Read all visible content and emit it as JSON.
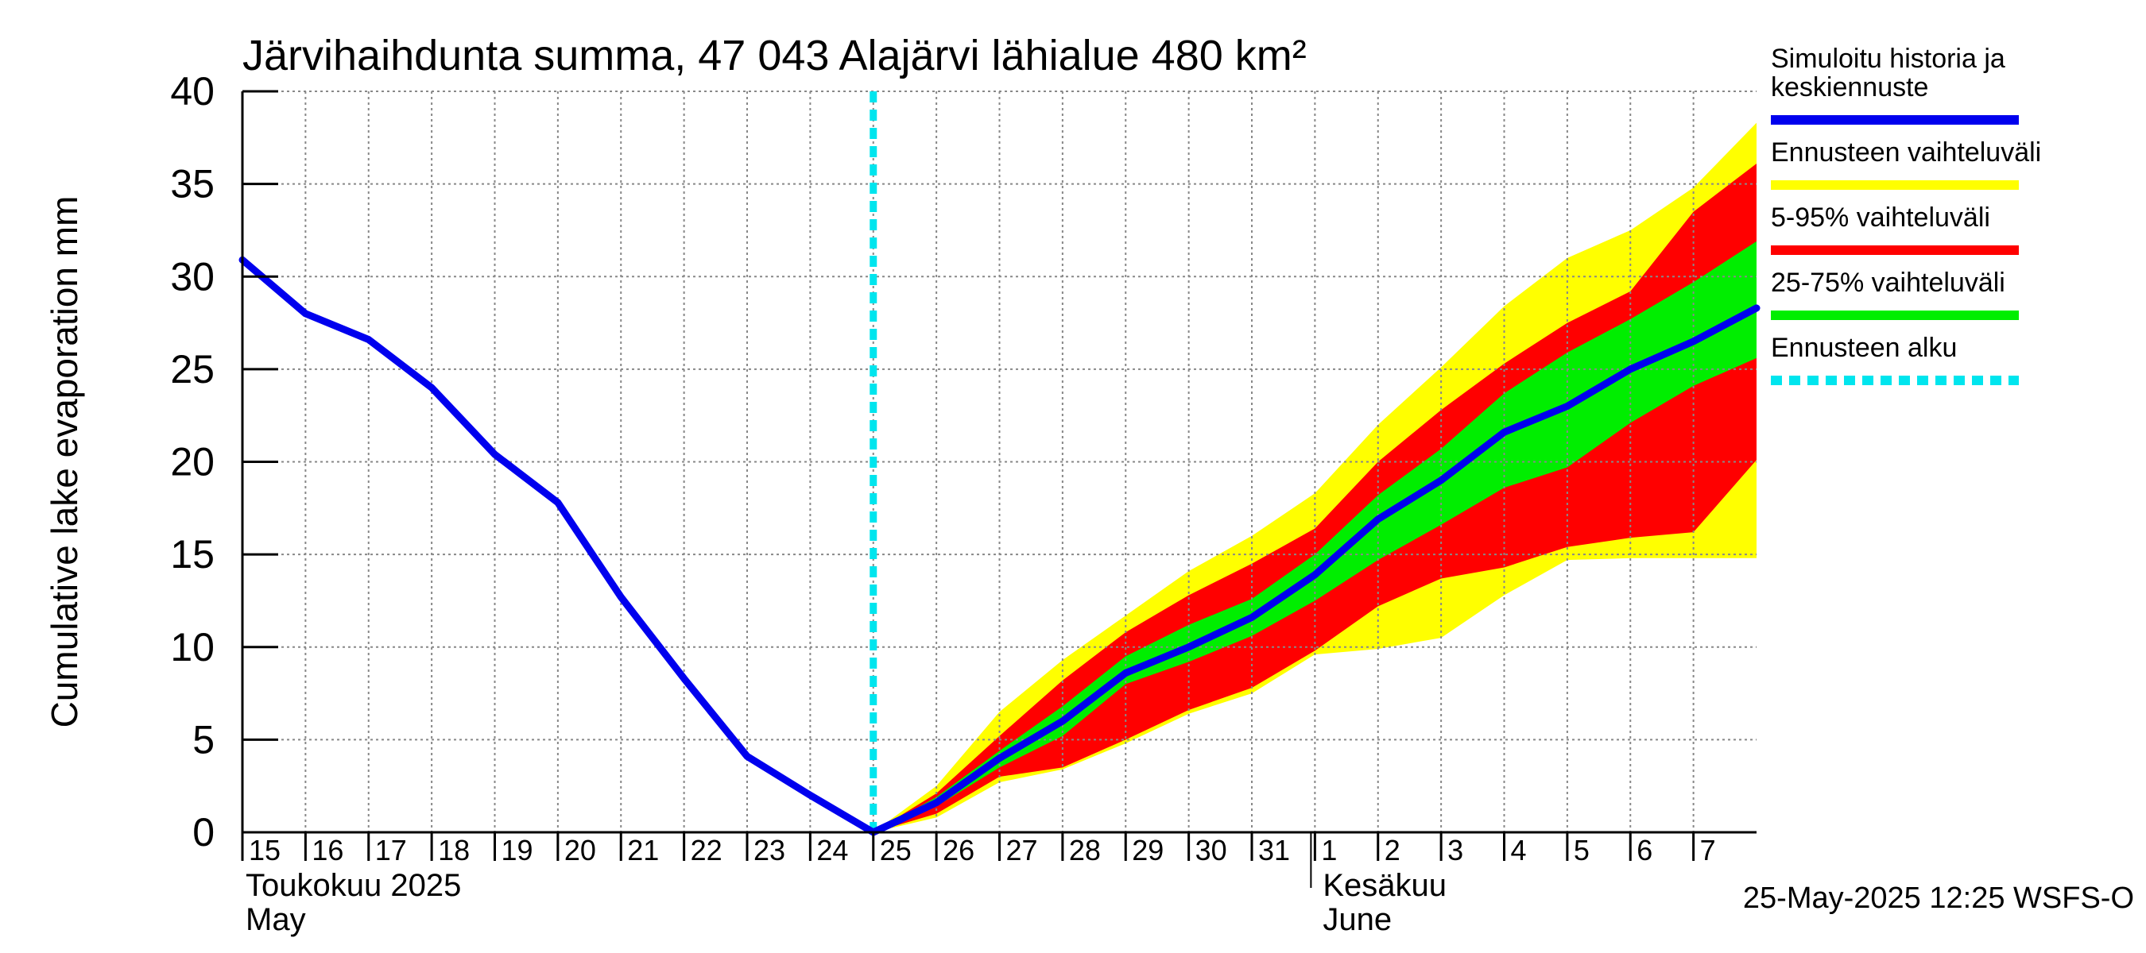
{
  "chart_data": {
    "type": "line",
    "title": "Järvihaihdunta summa, 47 043 Alajärvi lähialue 480 km²",
    "ylabel": "Cumulative lake evaporation   mm",
    "ylim": [
      0,
      40
    ],
    "yticks": [
      0,
      5,
      10,
      15,
      20,
      25,
      30,
      35,
      40
    ],
    "grid": true,
    "x_range": [
      15,
      39
    ],
    "x_tick_labels": [
      {
        "day": 15,
        "label": "15"
      },
      {
        "day": 16,
        "label": "16"
      },
      {
        "day": 17,
        "label": "17"
      },
      {
        "day": 18,
        "label": "18"
      },
      {
        "day": 19,
        "label": "19"
      },
      {
        "day": 20,
        "label": "20"
      },
      {
        "day": 21,
        "label": "21"
      },
      {
        "day": 22,
        "label": "22"
      },
      {
        "day": 23,
        "label": "23"
      },
      {
        "day": 24,
        "label": "24"
      },
      {
        "day": 25,
        "label": "25"
      },
      {
        "day": 26,
        "label": "26"
      },
      {
        "day": 27,
        "label": "27"
      },
      {
        "day": 28,
        "label": "28"
      },
      {
        "day": 29,
        "label": "29"
      },
      {
        "day": 30,
        "label": "30"
      },
      {
        "day": 31,
        "label": "31"
      },
      {
        "day": 32,
        "label": "1"
      },
      {
        "day": 33,
        "label": "2"
      },
      {
        "day": 34,
        "label": "3"
      },
      {
        "day": 35,
        "label": "4"
      },
      {
        "day": 36,
        "label": "5"
      },
      {
        "day": 37,
        "label": "6"
      },
      {
        "day": 38,
        "label": "7"
      }
    ],
    "month_labels": [
      {
        "day": 15,
        "line1": "Toukokuu  2025",
        "line2": "May"
      },
      {
        "day": 32,
        "line1": "Kesäkuu",
        "line2": "June"
      }
    ],
    "forecast_start_day": 25,
    "series": [
      {
        "name": "Simuloitu historia ja keskiennuste",
        "color": "#0000ee",
        "x": [
          15,
          16,
          17,
          18,
          19,
          20,
          21,
          22,
          23,
          24,
          25,
          26,
          27,
          28,
          29,
          30,
          31,
          32,
          33,
          34,
          35,
          36,
          37,
          38,
          39
        ],
        "y": [
          30.9,
          28.0,
          26.6,
          24.0,
          20.4,
          17.8,
          12.7,
          8.3,
          4.1,
          2.0,
          0.0,
          1.6,
          4.0,
          6.0,
          8.6,
          10.0,
          11.6,
          13.9,
          16.9,
          19.0,
          21.6,
          23.0,
          25.0,
          26.5,
          28.3
        ]
      }
    ],
    "bands": [
      {
        "name": "Ennusteen vaihteluväli",
        "color": "#ffff00",
        "x": [
          25,
          26,
          27,
          28,
          29,
          30,
          31,
          32,
          33,
          34,
          35,
          36,
          37,
          38,
          39
        ],
        "lower": [
          0.0,
          0.8,
          2.7,
          3.4,
          4.8,
          6.4,
          7.5,
          9.6,
          9.9,
          10.5,
          12.8,
          14.7,
          14.8,
          14.8,
          14.8
        ],
        "upper": [
          0.0,
          2.5,
          6.5,
          9.3,
          11.7,
          14.1,
          16.0,
          18.3,
          22.0,
          25.1,
          28.4,
          31.0,
          32.5,
          34.8,
          38.3
        ]
      },
      {
        "name": "5-95% vaihteluväli",
        "color": "#ff0000",
        "x": [
          25,
          26,
          27,
          28,
          29,
          30,
          31,
          32,
          33,
          34,
          35,
          36,
          37,
          38,
          39
        ],
        "lower": [
          0.0,
          1.0,
          3.0,
          3.5,
          5.0,
          6.6,
          7.8,
          9.8,
          12.2,
          13.7,
          14.3,
          15.4,
          15.9,
          16.2,
          20.1
        ],
        "upper": [
          0.0,
          2.1,
          5.2,
          8.2,
          10.8,
          12.8,
          14.5,
          16.4,
          20.0,
          22.8,
          25.3,
          27.5,
          29.2,
          33.5,
          36.1
        ]
      },
      {
        "name": "25-75% vaihteluväli",
        "color": "#00ee00",
        "x": [
          25,
          26,
          27,
          28,
          29,
          30,
          31,
          32,
          33,
          34,
          35,
          36,
          37,
          38,
          39
        ],
        "lower": [
          0.0,
          1.4,
          3.5,
          5.2,
          8.0,
          9.2,
          10.6,
          12.5,
          14.7,
          16.6,
          18.6,
          19.7,
          22.1,
          24.1,
          25.6
        ],
        "upper": [
          0.0,
          1.9,
          4.4,
          6.8,
          9.5,
          11.2,
          12.6,
          15.0,
          18.2,
          20.7,
          23.7,
          25.9,
          27.7,
          29.7,
          31.9
        ]
      }
    ],
    "legend": {
      "placement": "right",
      "entries": [
        {
          "label_lines": [
            "Simuloitu historia ja",
            "keskiennuste"
          ],
          "color": "#0000ee",
          "style": "solid"
        },
        {
          "label_lines": [
            "Ennusteen vaihteluväli"
          ],
          "color": "#ffff00",
          "style": "solid"
        },
        {
          "label_lines": [
            "5-95% vaihteluväli"
          ],
          "color": "#ff0000",
          "style": "solid"
        },
        {
          "label_lines": [
            "25-75% vaihteluväli"
          ],
          "color": "#00ee00",
          "style": "solid"
        },
        {
          "label_lines": [
            "Ennusteen alku"
          ],
          "color": "#00e5ee",
          "style": "dashed"
        }
      ]
    },
    "footer": "25-May-2025 12:25 WSFS-O"
  }
}
